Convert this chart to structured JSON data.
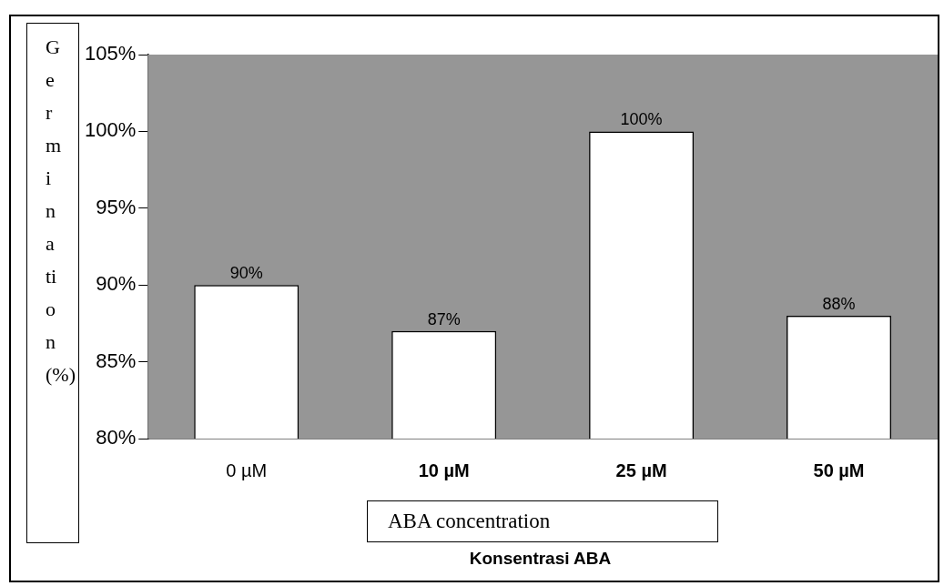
{
  "chart_data": {
    "type": "bar",
    "xlabel": "ABA concentration",
    "ylabel": "Germination (%)",
    "categories": [
      "0 µM",
      "10 µM",
      "25 µM",
      "50 µM"
    ],
    "values": [
      90,
      87,
      100,
      88
    ],
    "value_labels": [
      "90%",
      "87%",
      "100%",
      "88%"
    ],
    "color": "#ffffff",
    "ylim": [
      80,
      105
    ],
    "yticks": [
      {
        "value": 80,
        "label": "80%"
      },
      {
        "value": 85,
        "label": "85%"
      },
      {
        "value": 90,
        "label": "90%"
      },
      {
        "value": 95,
        "label": "95%"
      },
      {
        "value": 100,
        "label": "100%"
      },
      {
        "value": 105,
        "label": "105%"
      }
    ],
    "grid": false,
    "legend": false,
    "annotations": [
      "Konsentrasi ABA"
    ]
  }
}
